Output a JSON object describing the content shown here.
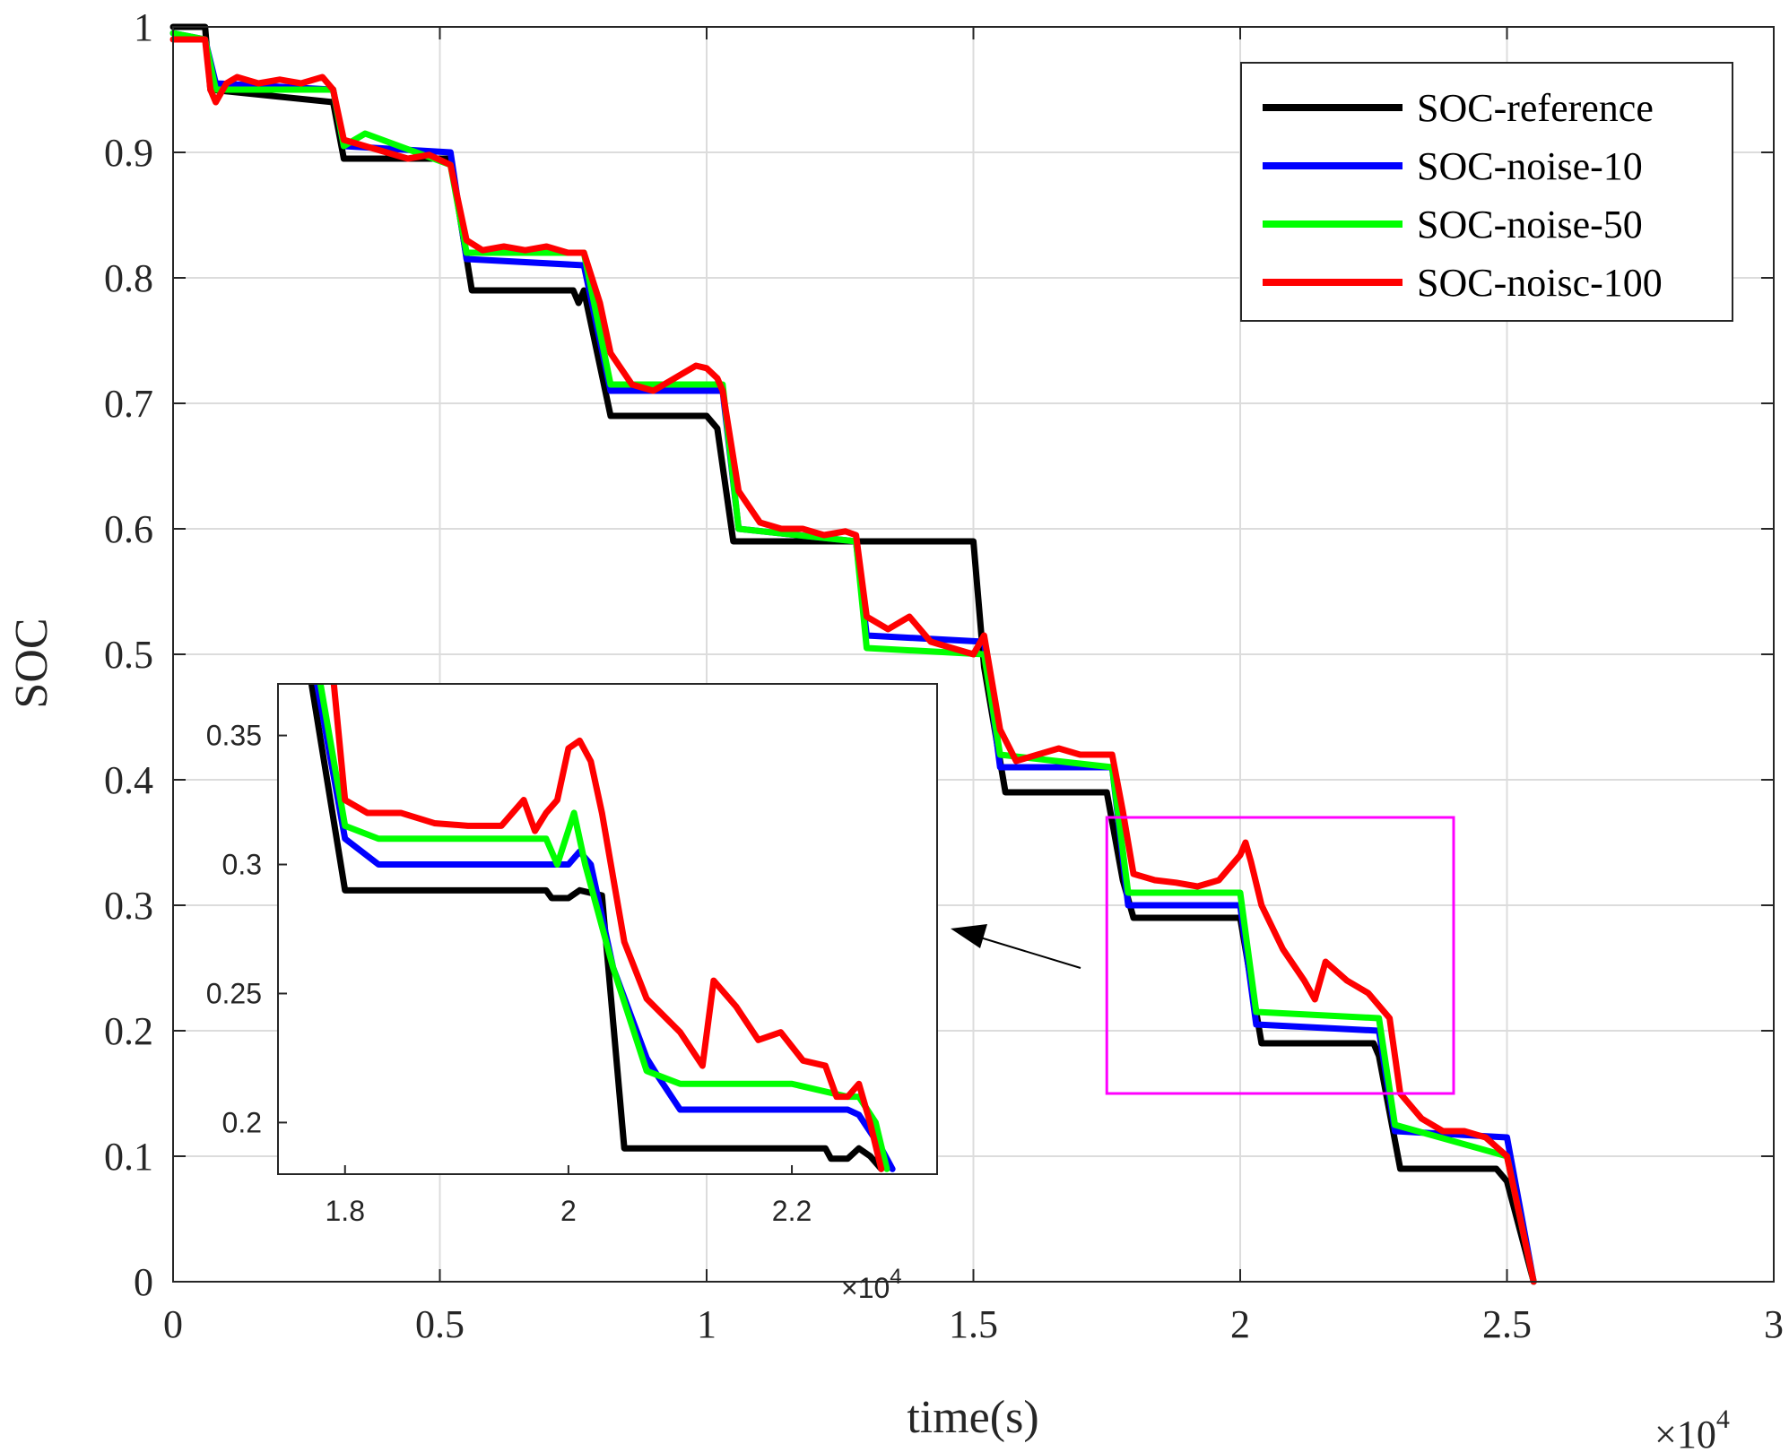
{
  "chart_data": [
    {
      "type": "line",
      "title": "",
      "xlabel": "time(s)",
      "ylabel": "SOC",
      "x_exponent_label": "×10",
      "x_exponent_power": "4",
      "xlim": [
        0,
        30000
      ],
      "ylim": [
        0,
        1
      ],
      "xticks": [
        0,
        5000,
        10000,
        15000,
        20000,
        25000,
        30000
      ],
      "xtick_labels": [
        "0",
        "0.5",
        "1",
        "1.5",
        "2",
        "2.5",
        "3"
      ],
      "yticks": [
        0,
        0.1,
        0.2,
        0.3,
        0.4,
        0.5,
        0.6,
        0.7,
        0.8,
        0.9,
        1
      ],
      "ytick_labels": [
        "0",
        "0.1",
        "0.2",
        "0.3",
        "0.4",
        "0.5",
        "0.6",
        "0.7",
        "0.8",
        "0.9",
        "1"
      ],
      "grid": true,
      "legend_position": "top-right",
      "series": [
        {
          "name": "SOC-reference",
          "color": "#000000",
          "x": [
            0,
            600,
            700,
            3000,
            3200,
            5200,
            5600,
            7500,
            7600,
            7700,
            8200,
            10000,
            10200,
            10500,
            15000,
            15200,
            15600,
            17500,
            17800,
            18000,
            20000,
            20400,
            22500,
            22600,
            23000,
            24800,
            25000,
            25500
          ],
          "y": [
            1.0,
            1.0,
            0.95,
            0.94,
            0.895,
            0.895,
            0.79,
            0.79,
            0.78,
            0.79,
            0.69,
            0.69,
            0.68,
            0.59,
            0.59,
            0.49,
            0.39,
            0.39,
            0.32,
            0.29,
            0.29,
            0.19,
            0.19,
            0.18,
            0.09,
            0.09,
            0.08,
            0.0
          ]
        },
        {
          "name": "SOC-noise-10",
          "color": "#0000ff",
          "x": [
            0,
            600,
            800,
            3000,
            3200,
            5200,
            5500,
            7700,
            8200,
            10300,
            10600,
            12800,
            13000,
            15200,
            15500,
            17600,
            17900,
            20000,
            20300,
            22600,
            22900,
            25000,
            25500
          ],
          "y": [
            0.995,
            0.99,
            0.955,
            0.95,
            0.905,
            0.9,
            0.815,
            0.81,
            0.71,
            0.71,
            0.6,
            0.59,
            0.515,
            0.51,
            0.41,
            0.41,
            0.3,
            0.3,
            0.205,
            0.2,
            0.12,
            0.115,
            0.0
          ]
        },
        {
          "name": "SOC-noise-50",
          "color": "#00ff00",
          "x": [
            0,
            600,
            800,
            3000,
            3200,
            3600,
            5200,
            5500,
            7700,
            8200,
            10300,
            10600,
            12800,
            13000,
            15200,
            15500,
            17600,
            17900,
            20000,
            20300,
            22600,
            22900,
            25000,
            25500
          ],
          "y": [
            0.995,
            0.99,
            0.95,
            0.95,
            0.905,
            0.915,
            0.89,
            0.82,
            0.82,
            0.715,
            0.715,
            0.6,
            0.59,
            0.505,
            0.5,
            0.42,
            0.41,
            0.31,
            0.31,
            0.215,
            0.21,
            0.125,
            0.1,
            0.0
          ]
        },
        {
          "name": "SOC-noisc-100",
          "color": "#ff0000",
          "x": [
            0,
            600,
            700,
            800,
            1000,
            1200,
            1600,
            2000,
            2400,
            2800,
            3000,
            3200,
            3600,
            4000,
            4400,
            4800,
            5200,
            5500,
            5800,
            6200,
            6600,
            7000,
            7400,
            7700,
            8000,
            8200,
            8600,
            9000,
            9400,
            9800,
            10000,
            10200,
            10300,
            10600,
            11000,
            11400,
            11800,
            12200,
            12600,
            12800,
            13000,
            13400,
            13800,
            14200,
            14600,
            15000,
            15200,
            15500,
            15800,
            16200,
            16600,
            17000,
            17400,
            17600,
            17800,
            18000,
            18400,
            18800,
            19200,
            19600,
            19800,
            20000,
            20100,
            20200,
            20400,
            20800,
            21200,
            21400,
            21600,
            22000,
            22400,
            22600,
            22800,
            23000,
            23400,
            23800,
            24200,
            24600,
            25000,
            25500
          ],
          "y": [
            0.99,
            0.99,
            0.95,
            0.94,
            0.955,
            0.96,
            0.955,
            0.958,
            0.955,
            0.96,
            0.95,
            0.91,
            0.905,
            0.9,
            0.895,
            0.898,
            0.89,
            0.83,
            0.822,
            0.825,
            0.822,
            0.825,
            0.82,
            0.82,
            0.78,
            0.74,
            0.715,
            0.71,
            0.72,
            0.73,
            0.728,
            0.72,
            0.71,
            0.63,
            0.605,
            0.6,
            0.6,
            0.595,
            0.598,
            0.595,
            0.53,
            0.52,
            0.53,
            0.51,
            0.505,
            0.5,
            0.515,
            0.44,
            0.415,
            0.42,
            0.425,
            0.42,
            0.42,
            0.42,
            0.375,
            0.325,
            0.32,
            0.318,
            0.315,
            0.32,
            0.33,
            0.34,
            0.35,
            0.335,
            0.3,
            0.265,
            0.24,
            0.225,
            0.255,
            0.24,
            0.23,
            0.22,
            0.21,
            0.15,
            0.13,
            0.12,
            0.12,
            0.115,
            0.1,
            0.0
          ]
        }
      ]
    },
    {
      "type": "line",
      "title": "",
      "xlabel": "",
      "ylabel": "",
      "x_exponent_label": "×10",
      "x_exponent_power": "4",
      "xlim": [
        17400,
        23300
      ],
      "ylim": [
        0.18,
        0.37
      ],
      "xticks": [
        18000,
        20000,
        22000
      ],
      "xtick_labels": [
        "1.8",
        "2",
        "2.2"
      ],
      "yticks": [
        0.2,
        0.25,
        0.3,
        0.35
      ],
      "ytick_labels": [
        "0.2",
        "0.25",
        "0.3",
        "0.35"
      ],
      "grid": false,
      "series": [
        {
          "name": "SOC-reference",
          "color": "#000000",
          "x": [
            17700,
            18000,
            19800,
            19850,
            20000,
            20100,
            20300,
            20500,
            22300,
            22350,
            22500,
            22600,
            22600,
            22700,
            22800
          ],
          "y": [
            0.37,
            0.29,
            0.29,
            0.287,
            0.287,
            0.29,
            0.288,
            0.19,
            0.19,
            0.186,
            0.186,
            0.19,
            0.19,
            0.187,
            0.182
          ]
        },
        {
          "name": "SOC-noise-10",
          "color": "#0000ff",
          "x": [
            17750,
            18000,
            18300,
            20000,
            20100,
            20200,
            20400,
            20700,
            20800,
            21000,
            22500,
            22600,
            22800,
            22900
          ],
          "y": [
            0.37,
            0.31,
            0.3,
            0.3,
            0.305,
            0.3,
            0.26,
            0.225,
            0.218,
            0.205,
            0.205,
            0.203,
            0.19,
            0.182
          ]
        },
        {
          "name": "SOC-noise-50",
          "color": "#00ff00",
          "x": [
            17780,
            18000,
            18300,
            19800,
            19900,
            20050,
            20150,
            20400,
            20700,
            21000,
            21100,
            22000,
            22500,
            22600,
            22750,
            22850
          ],
          "y": [
            0.37,
            0.315,
            0.31,
            0.31,
            0.3,
            0.32,
            0.3,
            0.26,
            0.22,
            0.215,
            0.215,
            0.215,
            0.21,
            0.21,
            0.2,
            0.182
          ]
        },
        {
          "name": "SOC-noisc-100",
          "color": "#ff0000",
          "x": [
            17900,
            18000,
            18200,
            18500,
            18800,
            19100,
            19400,
            19600,
            19700,
            19800,
            19900,
            20000,
            20100,
            20200,
            20300,
            20400,
            20500,
            20700,
            21000,
            21200,
            21300,
            21500,
            21700,
            21900,
            22100,
            22300,
            22400,
            22500,
            22600,
            22700,
            22800
          ],
          "y": [
            0.37,
            0.325,
            0.32,
            0.32,
            0.316,
            0.315,
            0.315,
            0.325,
            0.313,
            0.32,
            0.325,
            0.345,
            0.348,
            0.34,
            0.32,
            0.295,
            0.27,
            0.248,
            0.235,
            0.222,
            0.255,
            0.245,
            0.232,
            0.235,
            0.224,
            0.222,
            0.21,
            0.21,
            0.215,
            0.2,
            0.182
          ]
        }
      ]
    }
  ]
}
